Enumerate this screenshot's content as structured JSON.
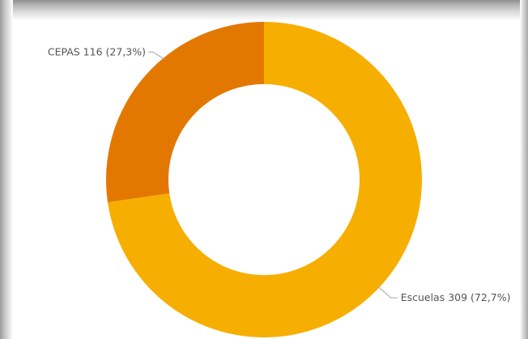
{
  "chart_data": {
    "type": "pie",
    "donut": true,
    "title": "",
    "slices": [
      {
        "category": "Escuelas",
        "value": 309,
        "percent": "72,7%",
        "label": "Escuelas 309 (72,7%)",
        "color": "#F6AE00"
      },
      {
        "category": "CEPAS",
        "value": 116,
        "percent": "27,3%",
        "label": "CEPAS 116 (27,3%)",
        "color": "#E37800"
      }
    ],
    "legend": "none",
    "start_angle": "12 o'clock",
    "direction": "clockwise"
  },
  "colors": {
    "background": "#FFFFFF",
    "leader_line": "#A6A6A6",
    "label_text": "#555555"
  }
}
